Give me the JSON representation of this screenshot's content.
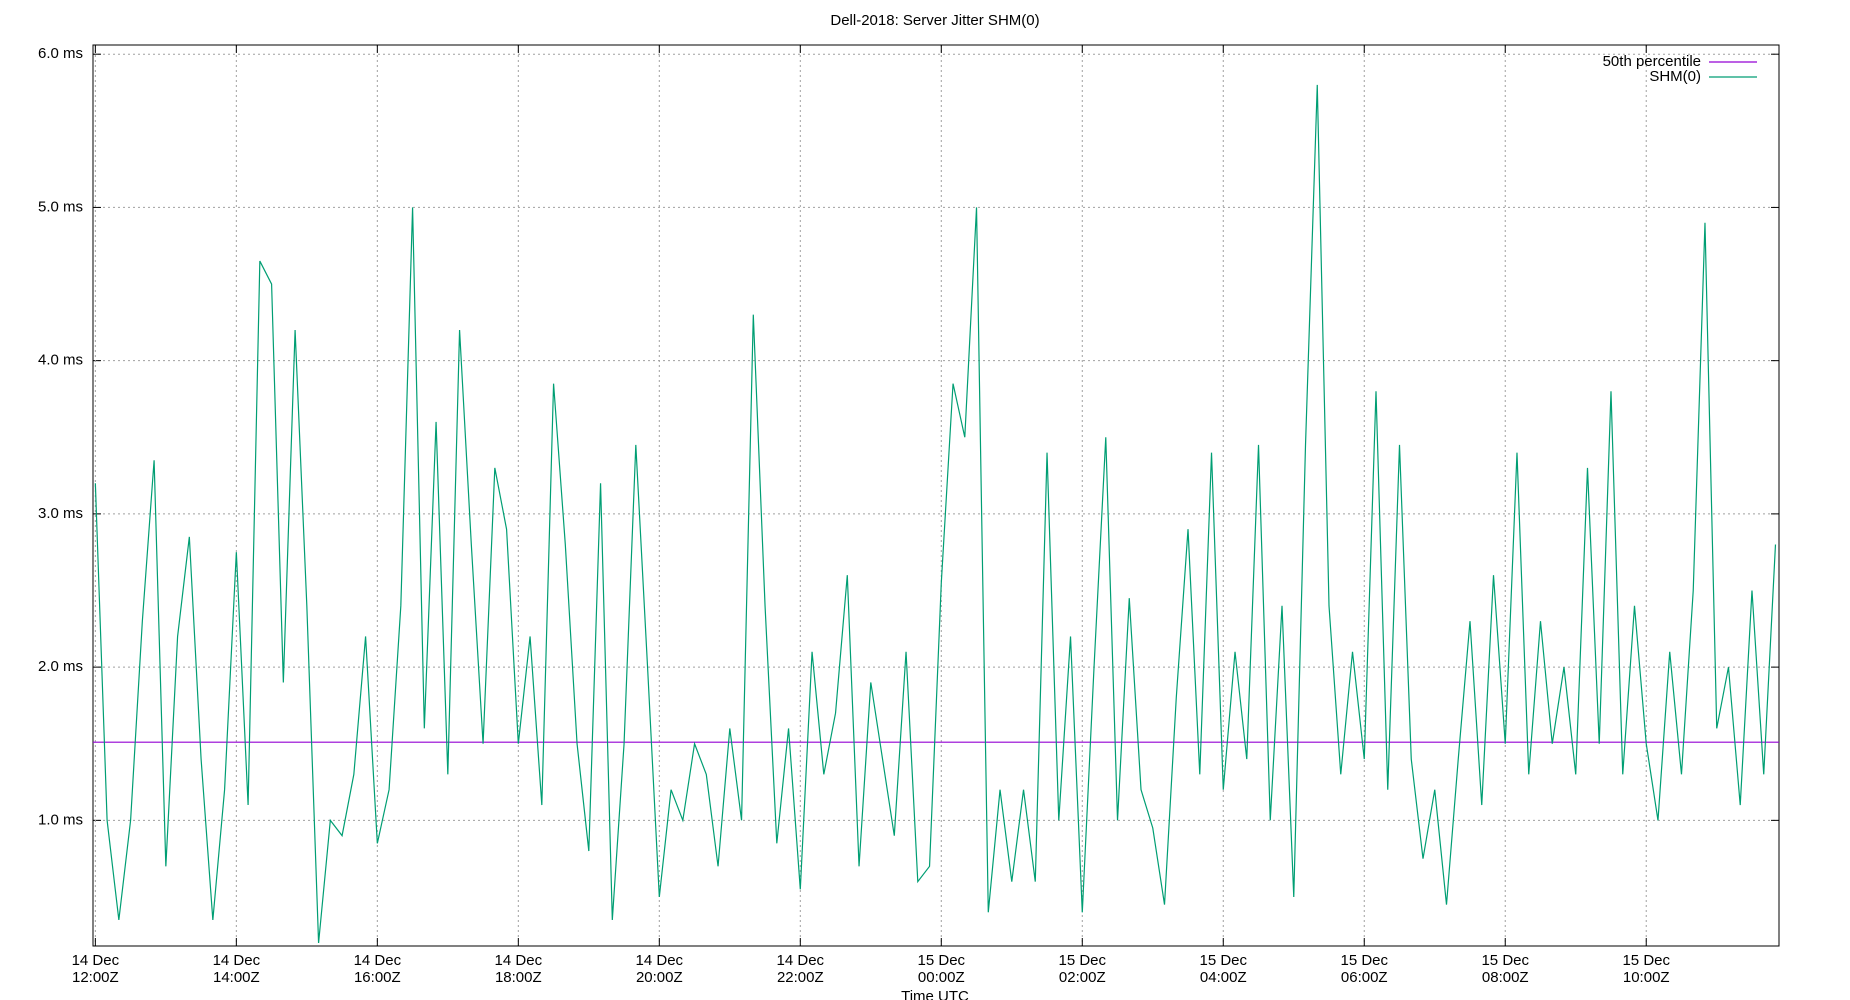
{
  "chart_data": {
    "type": "line",
    "title": "Dell-2018: Server Jitter SHM(0)",
    "xlabel": "Time UTC",
    "xlim": [
      "14 Dec 11:58Z",
      "15 Dec 11:53Z"
    ],
    "xticks": [
      "14 Dec 12:00Z",
      "14 Dec 14:00Z",
      "14 Dec 16:00Z",
      "14 Dec 18:00Z",
      "14 Dec 20:00Z",
      "14 Dec 22:00Z",
      "15 Dec 00:00Z",
      "15 Dec 02:00Z",
      "15 Dec 04:00Z",
      "15 Dec 06:00Z",
      "15 Dec 08:00Z",
      "15 Dec 10:00Z"
    ],
    "ylim": [
      0.18,
      6.06
    ],
    "yticks": [
      {
        "value": 1,
        "label": "1.0 ms"
      },
      {
        "value": 2,
        "label": "2.0 ms"
      },
      {
        "value": 3,
        "label": "3.0 ms"
      },
      {
        "value": 4,
        "label": "4.0 ms"
      },
      {
        "value": 5,
        "label": "5.0 ms"
      },
      {
        "value": 6,
        "label": "6.0 ms"
      }
    ],
    "grid": true,
    "legend": "upper right",
    "series": [
      {
        "name": "50th percentile",
        "color": "#9400d3",
        "x": [
          "14 Dec 11:58Z",
          "15 Dec 11:53Z"
        ],
        "values": [
          1.51,
          1.51
        ]
      },
      {
        "name": "SHM(0)",
        "color": "#009e73",
        "x": [
          "14 Dec 12:00Z",
          "14 Dec 12:10Z",
          "14 Dec 12:20Z",
          "14 Dec 12:30Z",
          "14 Dec 12:40Z",
          "14 Dec 12:50Z",
          "14 Dec 13:00Z",
          "14 Dec 13:10Z",
          "14 Dec 13:20Z",
          "14 Dec 13:30Z",
          "14 Dec 13:40Z",
          "14 Dec 13:50Z",
          "14 Dec 14:00Z",
          "14 Dec 14:10Z",
          "14 Dec 14:20Z",
          "14 Dec 14:30Z",
          "14 Dec 14:40Z",
          "14 Dec 14:50Z",
          "14 Dec 15:00Z",
          "14 Dec 15:10Z",
          "14 Dec 15:20Z",
          "14 Dec 15:30Z",
          "14 Dec 15:40Z",
          "14 Dec 15:50Z",
          "14 Dec 16:00Z",
          "14 Dec 16:10Z",
          "14 Dec 16:20Z",
          "14 Dec 16:30Z",
          "14 Dec 16:40Z",
          "14 Dec 16:50Z",
          "14 Dec 17:00Z",
          "14 Dec 17:10Z",
          "14 Dec 17:20Z",
          "14 Dec 17:30Z",
          "14 Dec 17:40Z",
          "14 Dec 17:50Z",
          "14 Dec 18:00Z",
          "14 Dec 18:10Z",
          "14 Dec 18:20Z",
          "14 Dec 18:30Z",
          "14 Dec 18:40Z",
          "14 Dec 18:50Z",
          "14 Dec 19:00Z",
          "14 Dec 19:10Z",
          "14 Dec 19:20Z",
          "14 Dec 19:30Z",
          "14 Dec 19:40Z",
          "14 Dec 19:50Z",
          "14 Dec 20:00Z",
          "14 Dec 20:10Z",
          "14 Dec 20:20Z",
          "14 Dec 20:30Z",
          "14 Dec 20:40Z",
          "14 Dec 20:50Z",
          "14 Dec 21:00Z",
          "14 Dec 21:10Z",
          "14 Dec 21:20Z",
          "14 Dec 21:30Z",
          "14 Dec 21:40Z",
          "14 Dec 21:50Z",
          "14 Dec 22:00Z",
          "14 Dec 22:10Z",
          "14 Dec 22:20Z",
          "14 Dec 22:30Z",
          "14 Dec 22:40Z",
          "14 Dec 22:50Z",
          "14 Dec 23:00Z",
          "14 Dec 23:10Z",
          "14 Dec 23:20Z",
          "14 Dec 23:30Z",
          "14 Dec 23:40Z",
          "14 Dec 23:50Z",
          "15 Dec 00:00Z",
          "15 Dec 00:10Z",
          "15 Dec 00:20Z",
          "15 Dec 00:30Z",
          "15 Dec 00:40Z",
          "15 Dec 00:50Z",
          "15 Dec 01:00Z",
          "15 Dec 01:10Z",
          "15 Dec 01:20Z",
          "15 Dec 01:30Z",
          "15 Dec 01:40Z",
          "15 Dec 01:50Z",
          "15 Dec 02:00Z",
          "15 Dec 02:10Z",
          "15 Dec 02:20Z",
          "15 Dec 02:30Z",
          "15 Dec 02:40Z",
          "15 Dec 02:50Z",
          "15 Dec 03:00Z",
          "15 Dec 03:10Z",
          "15 Dec 03:20Z",
          "15 Dec 03:30Z",
          "15 Dec 03:40Z",
          "15 Dec 03:50Z",
          "15 Dec 04:00Z",
          "15 Dec 04:10Z",
          "15 Dec 04:20Z",
          "15 Dec 04:30Z",
          "15 Dec 04:40Z",
          "15 Dec 04:50Z",
          "15 Dec 05:00Z",
          "15 Dec 05:10Z",
          "15 Dec 05:20Z",
          "15 Dec 05:30Z",
          "15 Dec 05:40Z",
          "15 Dec 05:50Z",
          "15 Dec 06:00Z",
          "15 Dec 06:10Z",
          "15 Dec 06:20Z",
          "15 Dec 06:30Z",
          "15 Dec 06:40Z",
          "15 Dec 06:50Z",
          "15 Dec 07:00Z",
          "15 Dec 07:10Z",
          "15 Dec 07:20Z",
          "15 Dec 07:30Z",
          "15 Dec 07:40Z",
          "15 Dec 07:50Z",
          "15 Dec 08:00Z",
          "15 Dec 08:10Z",
          "15 Dec 08:20Z",
          "15 Dec 08:30Z",
          "15 Dec 08:40Z",
          "15 Dec 08:50Z",
          "15 Dec 09:00Z",
          "15 Dec 09:10Z",
          "15 Dec 09:20Z",
          "15 Dec 09:30Z",
          "15 Dec 09:40Z",
          "15 Dec 09:50Z",
          "15 Dec 10:00Z",
          "15 Dec 10:10Z",
          "15 Dec 10:20Z",
          "15 Dec 10:30Z",
          "15 Dec 10:40Z",
          "15 Dec 10:50Z",
          "15 Dec 11:00Z",
          "15 Dec 11:10Z",
          "15 Dec 11:20Z",
          "15 Dec 11:30Z",
          "15 Dec 11:40Z",
          "15 Dec 11:50Z"
        ],
        "values": [
          3.2,
          1.0,
          0.35,
          1.0,
          2.3,
          3.35,
          0.7,
          2.2,
          2.85,
          1.4,
          0.35,
          1.2,
          2.75,
          1.1,
          4.65,
          4.5,
          1.9,
          4.2,
          2.4,
          0.2,
          1.0,
          0.9,
          1.3,
          2.2,
          0.85,
          1.2,
          2.4,
          5.0,
          1.6,
          3.6,
          1.3,
          4.2,
          2.8,
          1.5,
          3.3,
          2.9,
          1.5,
          2.2,
          1.1,
          3.85,
          2.8,
          1.5,
          0.8,
          3.2,
          0.35,
          1.5,
          3.45,
          2.0,
          0.5,
          1.2,
          1.0,
          1.5,
          1.3,
          0.7,
          1.6,
          1.0,
          4.3,
          2.4,
          0.85,
          1.6,
          0.55,
          2.1,
          1.3,
          1.7,
          2.6,
          0.7,
          1.9,
          1.4,
          0.9,
          2.1,
          0.6,
          0.7,
          2.55,
          3.85,
          3.5,
          5.0,
          0.4,
          1.2,
          0.6,
          1.2,
          0.6,
          3.4,
          1.0,
          2.2,
          0.4,
          2.0,
          3.5,
          1.0,
          2.45,
          1.2,
          0.95,
          0.45,
          1.8,
          2.9,
          1.3,
          3.4,
          1.2,
          2.1,
          1.4,
          3.45,
          1.0,
          2.4,
          0.5,
          3.45,
          5.8,
          2.4,
          1.3,
          2.1,
          1.4,
          3.8,
          1.2,
          3.45,
          1.4,
          0.75,
          1.2,
          0.45,
          1.4,
          2.3,
          1.1,
          2.6,
          1.5,
          3.4,
          1.3,
          2.3,
          1.5,
          2.0,
          1.3,
          3.3,
          1.5,
          3.8,
          1.3,
          2.4,
          1.5,
          1.0,
          2.1,
          1.3,
          2.5,
          4.9,
          1.6,
          2.0,
          1.1,
          2.5,
          1.3,
          2.8
        ]
      }
    ]
  }
}
